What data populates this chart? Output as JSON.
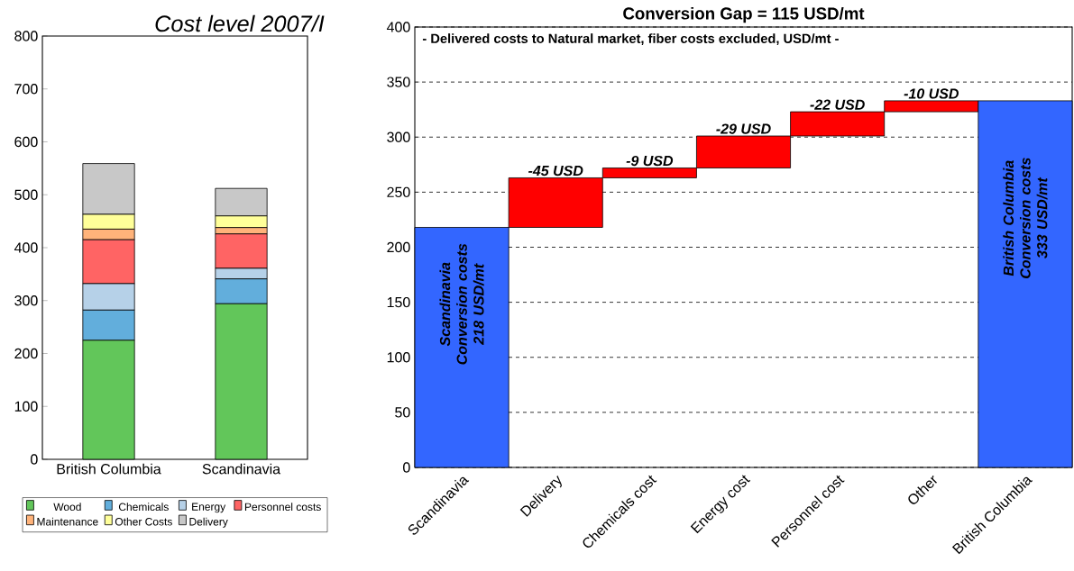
{
  "chart_data": [
    {
      "type": "bar",
      "title": "Cost level 2007/I",
      "stacked": true,
      "categories": [
        "British Columbia",
        "Scandinavia"
      ],
      "series": [
        {
          "name": "Wood",
          "color": "#62c65a",
          "values": [
            225,
            294
          ]
        },
        {
          "name": "Chemicals",
          "color": "#62aedc",
          "values": [
            57,
            47
          ]
        },
        {
          "name": "Energy",
          "color": "#b6d1e8",
          "values": [
            50,
            20
          ]
        },
        {
          "name": "Personnel costs",
          "color": "#ff6464",
          "values": [
            83,
            65
          ]
        },
        {
          "name": "Maintenance",
          "color": "#ffb37a",
          "values": [
            20,
            12
          ]
        },
        {
          "name": "Other Costs",
          "color": "#ffff99",
          "values": [
            28,
            22
          ]
        },
        {
          "name": "Delivery",
          "color": "#c8c8c8",
          "values": [
            96,
            52
          ]
        }
      ],
      "ylim": [
        0,
        800
      ],
      "yticks": [
        0,
        100,
        200,
        300,
        400,
        500,
        600,
        700,
        800
      ],
      "legend": "bottom"
    },
    {
      "type": "bar",
      "title": "Conversion Gap = 115 USD/mt",
      "annotations": [
        "- Delivered costs to Natural market, fiber costs excluded, USD/mt -"
      ],
      "categories": [
        "Scandinavia",
        "Delivery",
        "Chemicals cost",
        "Energy cost",
        "Personnel cost",
        "Other",
        "British Columbia"
      ],
      "values": [
        218,
        -45,
        -9,
        -29,
        -22,
        -10,
        333
      ],
      "base": [
        0,
        263,
        272,
        301,
        323,
        333,
        0
      ],
      "colors": [
        "#3366ff",
        "#ff0000",
        "#ff0000",
        "#ff0000",
        "#ff0000",
        "#ff0000",
        "#3366ff"
      ],
      "value_labels": [
        "Scandinavia Conversion costs 218 USD/mt",
        "-45 USD",
        "-9 USD",
        "-29 USD",
        "-22 USD",
        "-10 USD",
        "British Columbia Conversion costs 333 USD/mt"
      ],
      "ylim": [
        0,
        400
      ],
      "yticks": [
        0,
        50,
        100,
        150,
        200,
        250,
        300,
        350,
        400
      ],
      "grid": "y"
    }
  ]
}
